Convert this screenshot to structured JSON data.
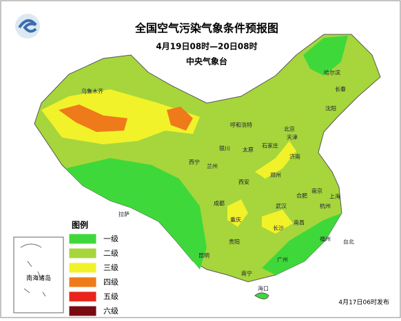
{
  "header": {
    "title": "全国空气污染气象条件预报图",
    "subtitle": "4月19日08时—20日08时",
    "issuer": "中央气象台"
  },
  "legend": {
    "title": "图例",
    "items": [
      {
        "label": "一级",
        "color": "#3fd83a"
      },
      {
        "label": "二级",
        "color": "#a6d63c"
      },
      {
        "label": "三级",
        "color": "#f2f22a"
      },
      {
        "label": "四级",
        "color": "#ef7a1a"
      },
      {
        "label": "五级",
        "color": "#e8241c"
      },
      {
        "label": "六级",
        "color": "#7a0a12"
      }
    ]
  },
  "inset": {
    "label": "南海诸岛"
  },
  "cities": [
    "乌鲁木齐",
    "哈尔滨",
    "长春",
    "沈阳",
    "呼和浩特",
    "北京",
    "天津",
    "石家庄",
    "太原",
    "济南",
    "银川",
    "兰州",
    "西宁",
    "西安",
    "郑州",
    "合肥",
    "南京",
    "上海",
    "武汉",
    "杭州",
    "成都",
    "重庆",
    "长沙",
    "南昌",
    "福州",
    "贵阳",
    "昆明",
    "南宁",
    "广州",
    "海口",
    "拉萨",
    "台北"
  ],
  "footer": "4月17日06时发布"
}
